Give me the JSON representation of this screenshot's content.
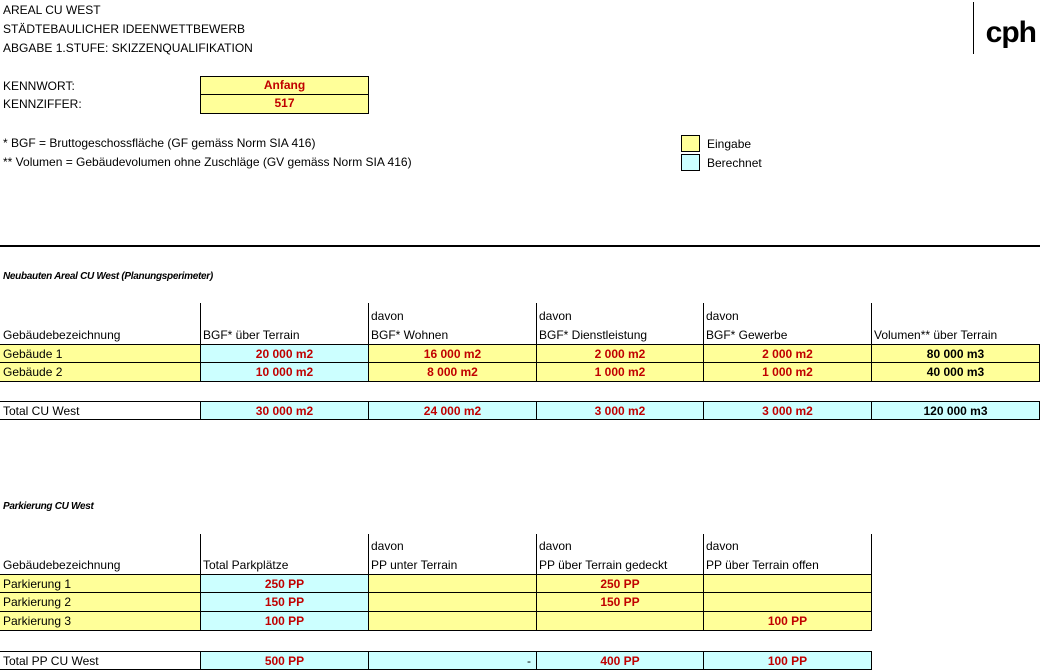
{
  "header": {
    "line1": "AREAL CU WEST",
    "line2": "STÄDTEBAULICHER IDEENWETTBEWERB",
    "line3": "ABGABE 1.STUFE: SKIZZENQUALIFIKATION",
    "logo": "cph"
  },
  "ident": {
    "kennwort_label": "KENNWORT:",
    "kennwort_value": "Anfang",
    "kennziffer_label": "KENNZIFFER:",
    "kennziffer_value": "517"
  },
  "notes": {
    "bgf": "* BGF = Bruttogeschossfläche (GF gemäss Norm SIA 416)",
    "volumen": "** Volumen = Gebäudevolumen ohne Zuschläge (GV gemäss Norm SIA 416)"
  },
  "legend": {
    "eingabe": "Eingabe",
    "berechnet": "Berechnet",
    "eingabe_color": "#ffff99",
    "berechnet_color": "#ccffff"
  },
  "neubauten": {
    "title": "Neubauten Areal CU West (Planungsperimeter)",
    "headers": [
      {
        "top": "",
        "bottom": "Gebäudebezeichnung"
      },
      {
        "top": "",
        "bottom": "BGF* über Terrain"
      },
      {
        "top": "davon",
        "bottom": "BGF* Wohnen"
      },
      {
        "top": "davon",
        "bottom": "BGF* Dienstleistung"
      },
      {
        "top": "davon",
        "bottom": "BGF* Gewerbe"
      },
      {
        "top": "",
        "bottom": "Volumen**  über Terrain"
      }
    ],
    "rows": [
      {
        "name": "Gebäude 1",
        "bgf": "20 000 m2",
        "wohnen": "16 000 m2",
        "dienst": "2 000 m2",
        "gewerbe": "2 000 m2",
        "volumen": "80 000 m3"
      },
      {
        "name": "Gebäude 2",
        "bgf": "10 000 m2",
        "wohnen": "8 000 m2",
        "dienst": "1 000 m2",
        "gewerbe": "1 000 m2",
        "volumen": "40 000 m3"
      }
    ],
    "total": {
      "name": "Total CU West",
      "bgf": "30 000 m2",
      "wohnen": "24 000 m2",
      "dienst": "3 000 m2",
      "gewerbe": "3 000 m2",
      "volumen": "120 000 m3"
    }
  },
  "parkierung": {
    "title": "Parkierung CU West",
    "headers": [
      {
        "top": "",
        "bottom": "Gebäudebezeichnung"
      },
      {
        "top": "",
        "bottom": "Total Parkplätze"
      },
      {
        "top": "davon",
        "bottom": "PP unter Terrain"
      },
      {
        "top": "davon",
        "bottom": "PP über Terrain gedeckt"
      },
      {
        "top": "davon",
        "bottom": "PP über Terrain offen"
      }
    ],
    "rows": [
      {
        "name": "Parkierung 1",
        "total": "250 PP",
        "unter": "",
        "gedeckt": "250 PP",
        "offen": ""
      },
      {
        "name": "Parkierung 2",
        "total": "150 PP",
        "unter": "",
        "gedeckt": "150 PP",
        "offen": ""
      },
      {
        "name": "Parkierung 3",
        "total": "100 PP",
        "unter": "",
        "gedeckt": "",
        "offen": "100 PP"
      }
    ],
    "total": {
      "name": "Total PP CU West",
      "total": "500 PP",
      "unter": "-",
      "gedeckt": "400 PP",
      "offen": "100 PP"
    }
  }
}
